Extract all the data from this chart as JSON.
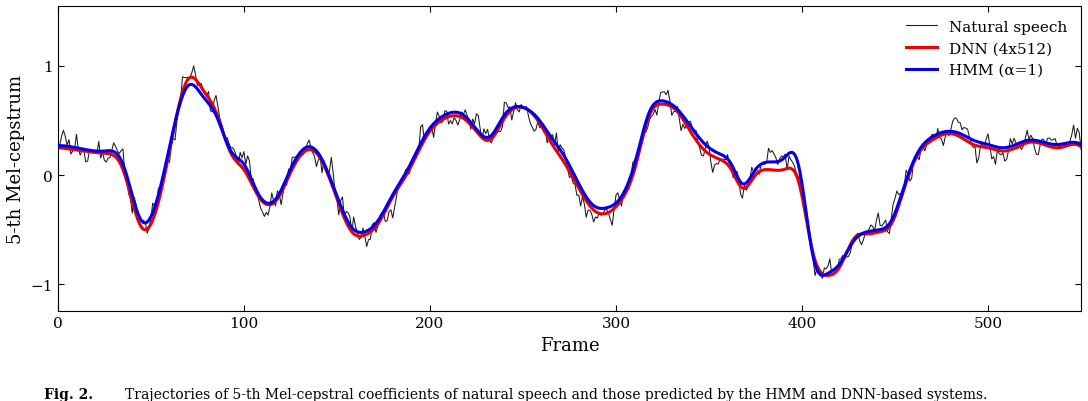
{
  "title": "",
  "xlabel": "Frame",
  "ylabel": "5-th Mel-cepstrum",
  "xlim": [
    0,
    550
  ],
  "ylim": [
    -1.25,
    1.55
  ],
  "yticks": [
    -1,
    0,
    1
  ],
  "xticks": [
    0,
    100,
    200,
    300,
    400,
    500
  ],
  "natural_color": "#1a1a1a",
  "hmm_color": "#0000EE",
  "dnn_color": "#EE0000",
  "natural_label": "Natural speech",
  "hmm_label": "HMM (α=1)",
  "dnn_label": "DNN (4x512)",
  "natural_lw": 0.75,
  "hmm_lw": 2.2,
  "dnn_lw": 2.2,
  "legend_fontsize": 11,
  "axis_fontsize": 13,
  "tick_fontsize": 11,
  "caption": "Fig. 2.   Trajectories of 5-th Mel-cepstral coefficients of natural speech and those predicted by the HMM and DNN-based systems.",
  "caption_fontsize": 10,
  "figsize": [
    10.88,
    4.02
  ],
  "dpi": 100,
  "background_color": "#ffffff"
}
